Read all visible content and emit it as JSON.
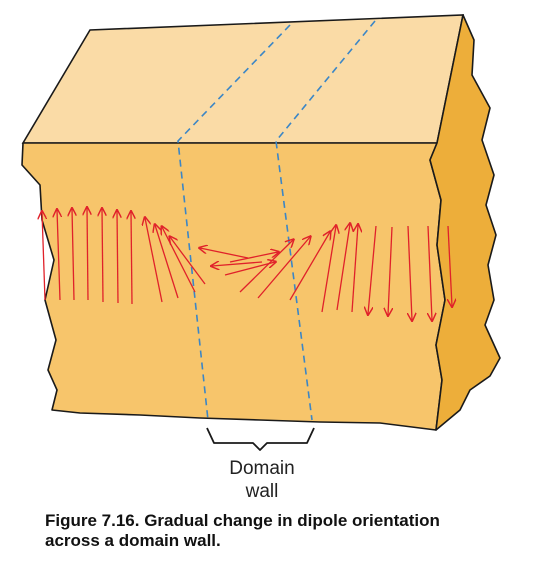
{
  "diagram": {
    "label_lines": [
      "Domain",
      "wall"
    ],
    "colors": {
      "top_face": "#FADBA6",
      "front_face": "#F7C56B",
      "side_face": "#EDAE3A",
      "outline": "#1a1a1a",
      "dashed_line": "#3B86C6",
      "arrow": "#E0212A"
    }
  },
  "caption": {
    "line1": "Figure 7.16. Gradual change in dipole orientation",
    "line2": "across a domain wall."
  }
}
